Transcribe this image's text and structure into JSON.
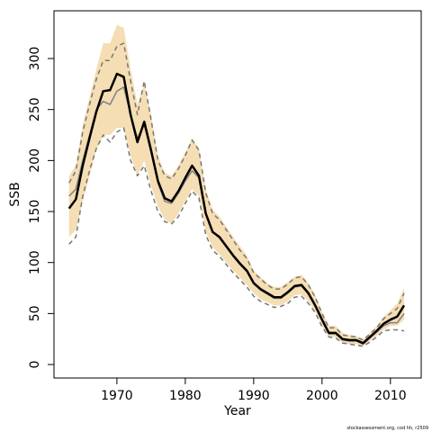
{
  "chart_data": {
    "type": "line",
    "x_label": "Year",
    "y_label": "SSB",
    "note": "stockassessment.org, cod hh, r2509",
    "x": [
      1963,
      1964,
      1965,
      1966,
      1967,
      1968,
      1969,
      1970,
      1971,
      1972,
      1973,
      1974,
      1975,
      1976,
      1977,
      1978,
      1979,
      1980,
      1981,
      1982,
      1983,
      1984,
      1985,
      1986,
      1987,
      1988,
      1989,
      1990,
      1991,
      1992,
      1993,
      1994,
      1995,
      1996,
      1997,
      1998,
      1999,
      2000,
      2001,
      2002,
      2003,
      2004,
      2005,
      2006,
      2007,
      2008,
      2009,
      2010,
      2011,
      2012
    ],
    "band": {
      "color": "#f5deb3",
      "upper": [
        185,
        195,
        235,
        262,
        290,
        315,
        315,
        333,
        330,
        290,
        255,
        275,
        245,
        205,
        188,
        185,
        195,
        208,
        222,
        212,
        172,
        152,
        145,
        135,
        125,
        116,
        107,
        92,
        86,
        80,
        76,
        76,
        81,
        86,
        88,
        80,
        68,
        52,
        38,
        38,
        31,
        29,
        28,
        25,
        31,
        38,
        47,
        53,
        60,
        75
      ],
      "lower": [
        125,
        132,
        160,
        185,
        210,
        225,
        225,
        232,
        232,
        205,
        185,
        200,
        175,
        155,
        142,
        138,
        148,
        160,
        172,
        165,
        130,
        115,
        108,
        100,
        92,
        85,
        78,
        70,
        64,
        61,
        58,
        58,
        62,
        68,
        69,
        62,
        52,
        38,
        27,
        27,
        21,
        20,
        20,
        18,
        23,
        28,
        34,
        38,
        38,
        44
      ]
    },
    "series": [
      {
        "color": "#777777",
        "dash": "5,4",
        "width": 1.5,
        "values": [
          178,
          190,
          228,
          255,
          280,
          298,
          298,
          312,
          315,
          278,
          245,
          278,
          240,
          200,
          185,
          182,
          192,
          205,
          220,
          210,
          168,
          148,
          142,
          132,
          122,
          112,
          104,
          90,
          84,
          78,
          74,
          74,
          79,
          85,
          86,
          78,
          66,
          50,
          36,
          36,
          29,
          28,
          27,
          24,
          30,
          36,
          45,
          50,
          55,
          70
        ]
      },
      {
        "color": "#777777",
        "dash": "5,4",
        "width": 1.5,
        "values": [
          118,
          125,
          165,
          190,
          212,
          225,
          218,
          228,
          232,
          200,
          185,
          195,
          170,
          150,
          140,
          138,
          145,
          158,
          170,
          163,
          127,
          112,
          106,
          98,
          90,
          83,
          76,
          67,
          62,
          59,
          56,
          57,
          60,
          66,
          67,
          60,
          51,
          37,
          27,
          26,
          21,
          20,
          19,
          18,
          22,
          27,
          33,
          34,
          34,
          33
        ]
      },
      {
        "color": "#808080",
        "dash": "none",
        "width": 1.5,
        "values": [
          165,
          172,
          200,
          225,
          250,
          258,
          255,
          268,
          272,
          245,
          222,
          235,
          208,
          178,
          160,
          158,
          168,
          180,
          190,
          183,
          148,
          130,
          124,
          115,
          106,
          98,
          91,
          79,
          73,
          69,
          65,
          65,
          70,
          76,
          77,
          69,
          57,
          43,
          30,
          30,
          24,
          23,
          23,
          20,
          26,
          32,
          38,
          41,
          41,
          50
        ]
      },
      {
        "color": "#000000",
        "dash": "none",
        "width": 2.5,
        "values": [
          153,
          162,
          195,
          222,
          248,
          268,
          269,
          285,
          282,
          245,
          218,
          238,
          210,
          180,
          163,
          160,
          170,
          183,
          195,
          185,
          148,
          130,
          125,
          116,
          107,
          99,
          92,
          80,
          74,
          70,
          66,
          66,
          71,
          77,
          78,
          70,
          58,
          44,
          31,
          31,
          25,
          24,
          24,
          21,
          27,
          33,
          40,
          44,
          47,
          58
        ]
      }
    ],
    "xlim": [
      1960.8,
      2014.5
    ],
    "xticks": [
      1970,
      1980,
      1990,
      2000,
      2010
    ],
    "ylim": [
      -13.2,
      346.8
    ],
    "yticks": [
      0,
      50,
      100,
      150,
      200,
      250,
      300
    ]
  }
}
